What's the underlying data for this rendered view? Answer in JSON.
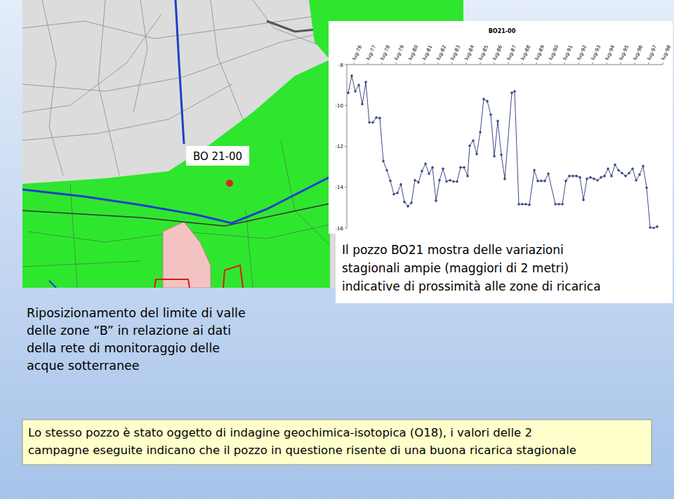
{
  "chart_data": {
    "type": "line",
    "title": "BO21-00",
    "x": [
      1976.1,
      1976.35,
      1976.6,
      1976.85,
      1977.1,
      1977.35,
      1977.6,
      1977.85,
      1978.1,
      1978.35,
      1978.6,
      1978.85,
      1979.1,
      1979.35,
      1979.6,
      1979.85,
      1980.1,
      1980.35,
      1980.6,
      1980.85,
      1981.1,
      1981.35,
      1981.6,
      1981.85,
      1982.1,
      1982.35,
      1982.6,
      1982.85,
      1983.1,
      1983.35,
      1983.6,
      1983.85,
      1984.1,
      1984.35,
      1984.6,
      1984.75,
      1985.0,
      1985.25,
      1985.5,
      1985.75,
      1986.0,
      1986.25,
      1986.5,
      1986.75,
      1987.0,
      1987.25,
      1987.75,
      1987.95,
      1988.25,
      1988.5,
      1988.75,
      1989.0,
      1989.35,
      1989.6,
      1989.85,
      1990.1,
      1990.35,
      1990.85,
      1991.1,
      1991.35,
      1991.6,
      1991.85,
      1992.1,
      1992.35,
      1992.6,
      1992.85,
      1993.1,
      1993.35,
      1993.6,
      1993.85,
      1994.1,
      1994.35,
      1994.6,
      1994.85,
      1995.1,
      1995.35,
      1995.6,
      1995.85,
      1996.1,
      1996.35,
      1996.6,
      1996.85,
      1997.1,
      1997.35,
      1997.6,
      1997.85,
      1998.1
    ],
    "values": [
      -9.38,
      -8.55,
      -9.31,
      -9.0,
      -9.93,
      -8.86,
      -10.83,
      -10.83,
      -10.59,
      -10.62,
      -12.72,
      -13.17,
      -13.69,
      -14.34,
      -14.28,
      -13.86,
      -14.72,
      -14.93,
      -14.76,
      -13.66,
      -13.76,
      -13.21,
      -12.86,
      -13.34,
      -13.03,
      -14.66,
      -13.66,
      -13.1,
      -13.72,
      -13.66,
      -13.72,
      -13.72,
      -13.03,
      -13.03,
      -13.45,
      -11.97,
      -11.72,
      -12.38,
      -11.31,
      -9.69,
      -9.79,
      -10.45,
      -12.48,
      -10.76,
      -12.41,
      -13.59,
      -9.38,
      -9.31,
      -14.83,
      -14.83,
      -14.83,
      -14.86,
      -13.17,
      -13.69,
      -13.69,
      -13.69,
      -13.34,
      -14.83,
      -14.83,
      -14.83,
      -13.69,
      -13.45,
      -13.45,
      -13.45,
      -13.52,
      -14.62,
      -13.59,
      -13.52,
      -13.59,
      -13.66,
      -13.52,
      -13.45,
      -13.1,
      -13.45,
      -12.9,
      -13.17,
      -13.31,
      -13.45,
      -13.31,
      -13.1,
      -13.66,
      -13.38,
      -12.97,
      -14.03,
      -15.97,
      -16.0,
      -15.93
    ],
    "color": "#3d4a86",
    "marker": "diamond",
    "line_style": "solid",
    "xlim": [
      1976,
      1998.5
    ],
    "xticks": [
      {
        "value": 1976.5,
        "label": "lug-76"
      },
      {
        "value": 1977.5,
        "label": "lug-77"
      },
      {
        "value": 1978.5,
        "label": "lug-78"
      },
      {
        "value": 1979.5,
        "label": "lug-79"
      },
      {
        "value": 1980.5,
        "label": "lug-80"
      },
      {
        "value": 1981.5,
        "label": "lug-81"
      },
      {
        "value": 1982.5,
        "label": "lug-82"
      },
      {
        "value": 1983.5,
        "label": "lug-83"
      },
      {
        "value": 1984.5,
        "label": "lug-84"
      },
      {
        "value": 1985.5,
        "label": "lug-85"
      },
      {
        "value": 1986.5,
        "label": "lug-86"
      },
      {
        "value": 1987.5,
        "label": "lug-87"
      },
      {
        "value": 1988.5,
        "label": "lug-88"
      },
      {
        "value": 1989.5,
        "label": "lug-89"
      },
      {
        "value": 1990.5,
        "label": "lug-90"
      },
      {
        "value": 1991.5,
        "label": "lug-91"
      },
      {
        "value": 1992.5,
        "label": "lug-92"
      },
      {
        "value": 1993.5,
        "label": "lug-93"
      },
      {
        "value": 1994.5,
        "label": "lug-94"
      },
      {
        "value": 1995.5,
        "label": "lug-95"
      },
      {
        "value": 1996.5,
        "label": "lug-96"
      },
      {
        "value": 1997.5,
        "label": "lug-97"
      },
      {
        "value": 1998.5,
        "label": "lug-98"
      }
    ],
    "ylim": [
      -16,
      -8
    ],
    "yticks": [
      -16,
      -14,
      -12,
      -10,
      -8
    ],
    "grid": false
  },
  "slide": {
    "map_label": "BO 21-00",
    "caption": [
      "Il pozzo BO21 mostra delle variazioni",
      "stagionali ampie (maggiori di 2 metri)",
      "indicative di prossimità alle zone di ricarica"
    ],
    "left_text": [
      "Riposizionamento del limite di valle",
      "delle zone “B” in relazione ai dati",
      "della rete di monitoraggio delle",
      "acque sotterranee"
    ],
    "bottom_note": [
      "Lo stesso pozzo è stato oggetto di indagine geochimica-isotopica (O18), i valori delle 2",
      "campagne eseguite indicano che il pozzo in questione risente di una buona ricarica stagionale"
    ]
  }
}
